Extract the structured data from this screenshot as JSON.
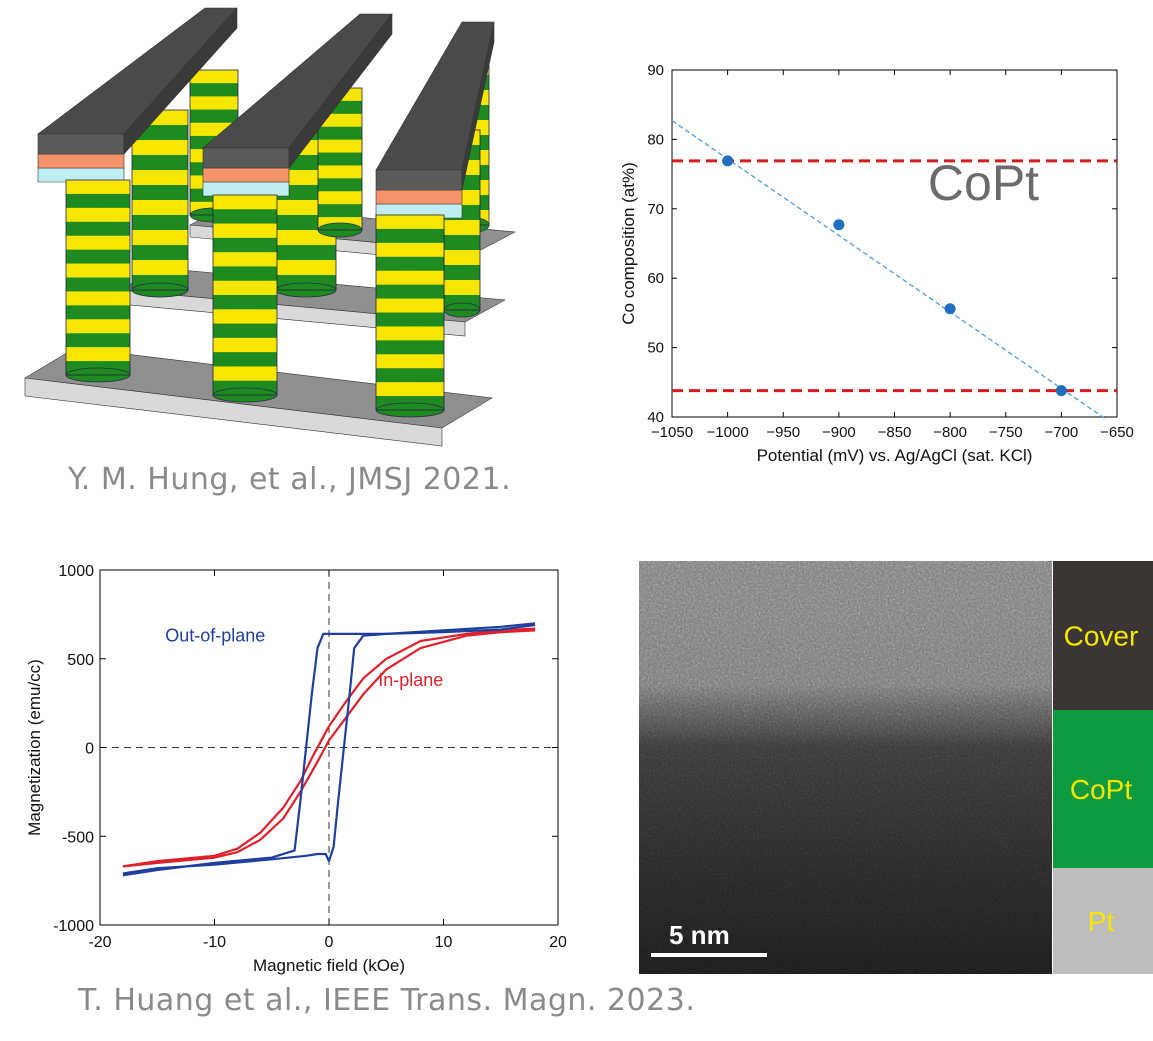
{
  "citations": {
    "top": "Y. M. Hung, et al., JMSJ 2021.",
    "bottom": "T. Huang et al., IEEE Trans. Magn. 2023."
  },
  "colors": {
    "layer_green": "#1f8a1f",
    "layer_yellow": "#f7e600",
    "cap_gray": "#5a5a5a",
    "cap_orange": "#f4936a",
    "cap_cyan": "#bfeef2",
    "series_red": "#e0202a",
    "series_blue": "#1e3f9e",
    "point_blue": "#1f6fbf",
    "ref_red": "#d81b1b",
    "layer_label": "#f7e600"
  },
  "chart_data": [
    {
      "type": "scatter",
      "title": "",
      "annotation": "CoPt",
      "xlabel": "Potential (mV) vs. Ag/AgCl (sat. KCl)",
      "ylabel": "Co composition (at%)",
      "xlim": [
        -1050,
        -650
      ],
      "ylim": [
        40,
        90
      ],
      "xticks": [
        -1050,
        -1000,
        -950,
        -900,
        -850,
        -800,
        -750,
        -700,
        -650
      ],
      "yticks": [
        40,
        50,
        60,
        70,
        80,
        90
      ],
      "points": [
        {
          "x": -1000,
          "y": 76.9
        },
        {
          "x": -900,
          "y": 67.7
        },
        {
          "x": -800,
          "y": 55.6
        },
        {
          "x": -700,
          "y": 43.8
        }
      ],
      "fit_line": {
        "x": [
          -1050,
          -660
        ],
        "y": [
          82.7,
          39.7
        ]
      },
      "reference_lines": [
        76.9,
        43.8
      ],
      "grid": false
    },
    {
      "type": "line",
      "title": "",
      "xlabel": "Magnetic field (kOe)",
      "ylabel": "Magnetization (emu/cc)",
      "xlim": [
        -20,
        20
      ],
      "ylim": [
        -1000,
        1000
      ],
      "xticks": [
        -20,
        -10,
        0,
        10,
        20
      ],
      "yticks": [
        -1000,
        -500,
        0,
        500,
        1000
      ],
      "series": [
        {
          "name": "Out-of-plane",
          "branches": [
            {
              "x": [
                -18,
                -15,
                -10,
                -5,
                -2,
                -1,
                -0.3,
                0,
                0.4,
                0.8,
                1.3,
                1.8,
                2.2,
                3,
                5,
                10,
                15,
                18
              ],
              "y": [
                -710,
                -680,
                -660,
                -630,
                -610,
                -600,
                -600,
                -640,
                -560,
                -300,
                0,
                300,
                560,
                630,
                640,
                650,
                665,
                690
              ]
            },
            {
              "x": [
                18,
                15,
                10,
                5,
                2,
                0.5,
                0,
                -0.5,
                -1,
                -1.5,
                -2,
                -2.5,
                -3,
                -5,
                -10,
                -15,
                -18
              ],
              "y": [
                700,
                680,
                660,
                640,
                640,
                640,
                640,
                640,
                560,
                300,
                0,
                -300,
                -580,
                -620,
                -650,
                -690,
                -720
              ]
            }
          ]
        },
        {
          "name": "In-plane",
          "branches": [
            {
              "x": [
                -18,
                -15,
                -10,
                -8,
                -6,
                -4,
                -2.5,
                -1,
                0,
                1.5,
                3,
                5,
                8,
                12,
                15,
                18
              ],
              "y": [
                -670,
                -650,
                -620,
                -590,
                -520,
                -400,
                -250,
                -80,
                40,
                170,
                300,
                440,
                560,
                630,
                650,
                660
              ]
            },
            {
              "x": [
                18,
                15,
                12,
                8,
                5,
                3,
                1.5,
                0,
                -1.5,
                -2.5,
                -4,
                -6,
                -8,
                -10,
                -15,
                -18
              ],
              "y": [
                670,
                660,
                640,
                600,
                500,
                390,
                260,
                120,
                -60,
                -190,
                -340,
                -480,
                -570,
                -610,
                -640,
                -670
              ]
            }
          ]
        }
      ]
    }
  ],
  "tem": {
    "scale_bar": "5 nm",
    "layers": [
      {
        "label": "Cover",
        "color": "#3b3633"
      },
      {
        "label": "CoPt",
        "color": "#0e9a3e"
      },
      {
        "label": "Pt",
        "color": "#bdbdbd"
      }
    ]
  }
}
